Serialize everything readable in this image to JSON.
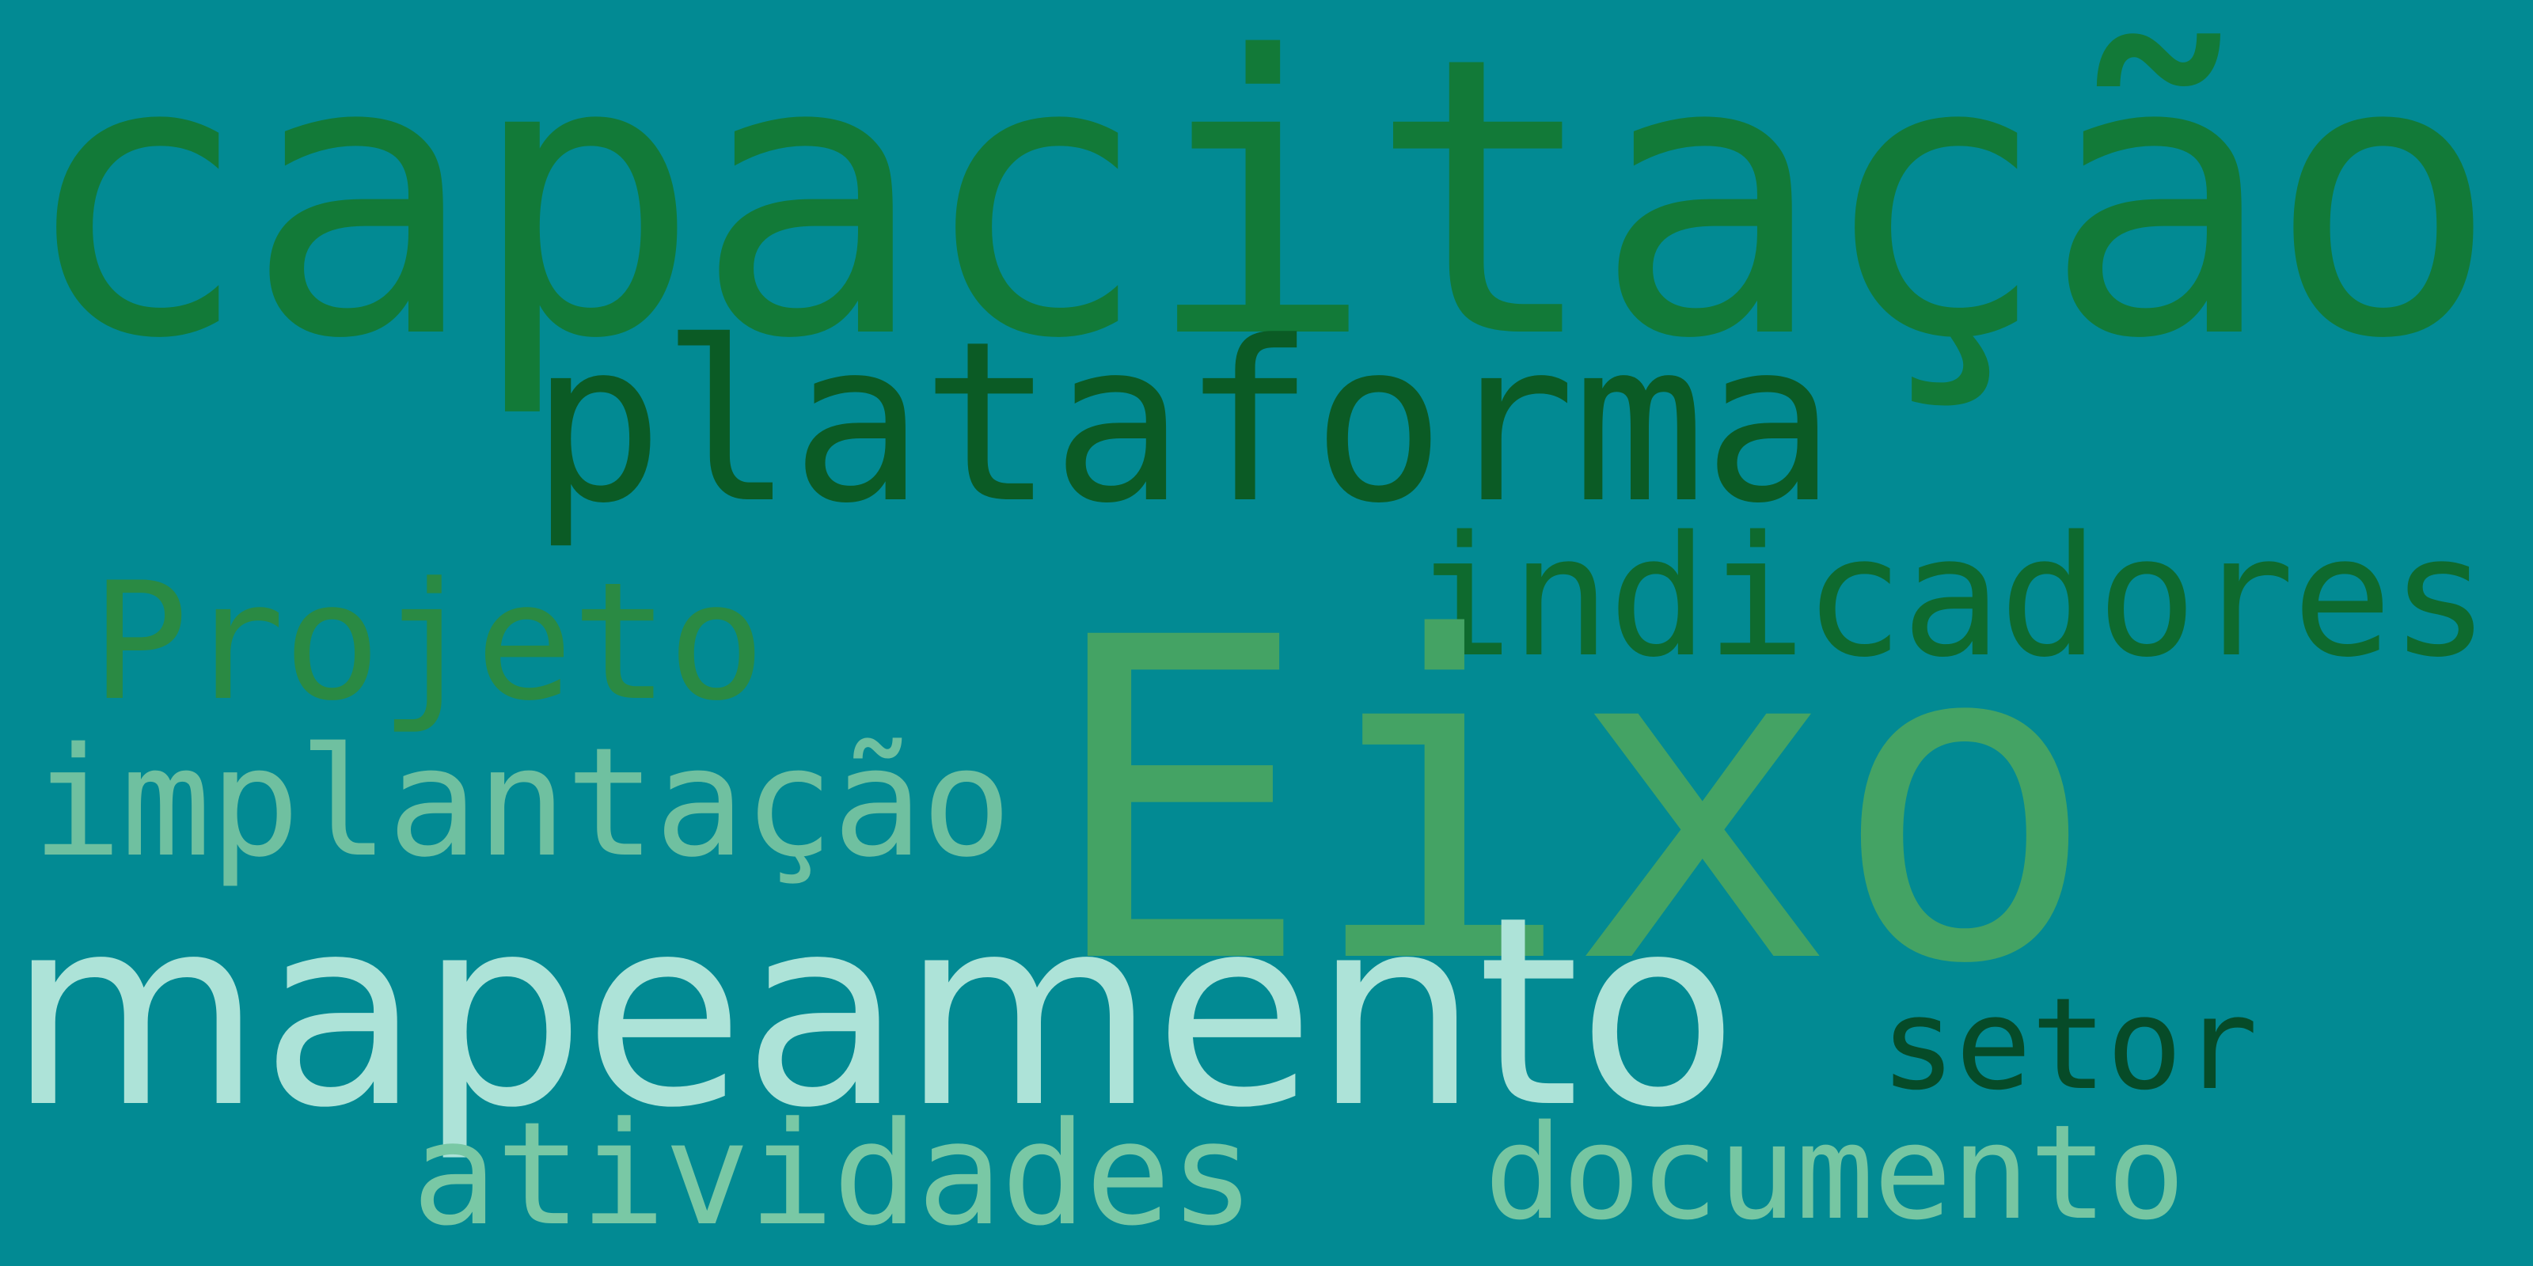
{
  "background": "#028a93",
  "words": {
    "capacitacao": {
      "text": "capacitação",
      "color": "#127a38"
    },
    "plataforma": {
      "text": "plataforma",
      "color": "#0b5b25"
    },
    "indicadores": {
      "text": "indicadores",
      "color": "#0e6a2e"
    },
    "projeto": {
      "text": "Projeto",
      "color": "#2a8a43"
    },
    "eixo": {
      "text": "Eixo",
      "color": "#44a364"
    },
    "implantacao": {
      "text": "implantação",
      "color": "#6fc0a0"
    },
    "mapeamento": {
      "text": "mapeamento",
      "color": "#ade3d8"
    },
    "setor": {
      "text": "setor",
      "color": "#064b28"
    },
    "atividades": {
      "text": "atividades",
      "color": "#79c8a5"
    },
    "documento": {
      "text": "documento",
      "color": "#76c6a2"
    }
  }
}
